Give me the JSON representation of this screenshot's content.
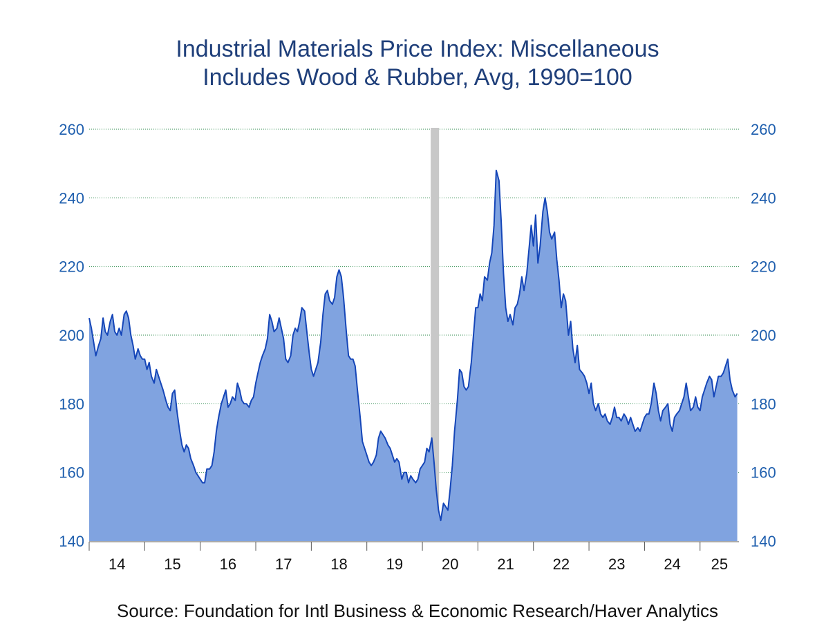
{
  "chart_data": {
    "type": "area",
    "title": "Industrial Materials Price Index: Miscellaneous",
    "subtitle": "Includes Wood & Rubber, Avg, 1990=100",
    "source": "Source:  Foundation for Intl Business & Economic Research/Haver Analytics",
    "xlabel": "",
    "ylabel": "",
    "ylim": [
      140,
      260
    ],
    "xlim": [
      2014.0,
      2025.7
    ],
    "y_ticks": [
      140,
      160,
      180,
      200,
      220,
      240,
      260
    ],
    "y_tick_labels": [
      "140",
      "160",
      "180",
      "200",
      "220",
      "240",
      "260"
    ],
    "x_tick_labels": [
      "14",
      "15",
      "16",
      "17",
      "18",
      "19",
      "20",
      "21",
      "22",
      "23",
      "24",
      "25"
    ],
    "grid": true,
    "recession_band": [
      2020.15,
      2020.3
    ],
    "colors": {
      "fill": "#80a3e0",
      "line": "#1546b8",
      "recession": "#c8c8c8",
      "grid": "#2a8a4a",
      "tick_text": "#1f5fae",
      "title": "#1f3f7a"
    },
    "series": [
      {
        "points": [
          [
            2014.0,
            205
          ],
          [
            2014.04,
            202
          ],
          [
            2014.08,
            198
          ],
          [
            2014.12,
            194
          ],
          [
            2014.17,
            197
          ],
          [
            2014.21,
            199
          ],
          [
            2014.25,
            205
          ],
          [
            2014.29,
            201
          ],
          [
            2014.33,
            200
          ],
          [
            2014.38,
            204
          ],
          [
            2014.42,
            206
          ],
          [
            2014.46,
            201
          ],
          [
            2014.5,
            200
          ],
          [
            2014.54,
            202
          ],
          [
            2014.58,
            200
          ],
          [
            2014.63,
            206
          ],
          [
            2014.67,
            207
          ],
          [
            2014.71,
            205
          ],
          [
            2014.75,
            200
          ],
          [
            2014.79,
            197
          ],
          [
            2014.83,
            193
          ],
          [
            2014.88,
            196
          ],
          [
            2014.92,
            194
          ],
          [
            2014.96,
            193
          ],
          [
            2015.0,
            193
          ],
          [
            2015.04,
            190
          ],
          [
            2015.08,
            192
          ],
          [
            2015.12,
            188
          ],
          [
            2015.17,
            186
          ],
          [
            2015.21,
            190
          ],
          [
            2015.25,
            188
          ],
          [
            2015.29,
            186
          ],
          [
            2015.33,
            184
          ],
          [
            2015.38,
            181
          ],
          [
            2015.42,
            179
          ],
          [
            2015.46,
            178
          ],
          [
            2015.5,
            183
          ],
          [
            2015.54,
            184
          ],
          [
            2015.58,
            178
          ],
          [
            2015.63,
            172
          ],
          [
            2015.67,
            168
          ],
          [
            2015.71,
            166
          ],
          [
            2015.75,
            168
          ],
          [
            2015.79,
            167
          ],
          [
            2015.83,
            164
          ],
          [
            2015.88,
            162
          ],
          [
            2015.92,
            160
          ],
          [
            2015.96,
            159
          ],
          [
            2016.0,
            158
          ],
          [
            2016.04,
            157
          ],
          [
            2016.08,
            157
          ],
          [
            2016.12,
            161
          ],
          [
            2016.17,
            161
          ],
          [
            2016.21,
            162
          ],
          [
            2016.25,
            166
          ],
          [
            2016.29,
            172
          ],
          [
            2016.33,
            176
          ],
          [
            2016.38,
            180
          ],
          [
            2016.42,
            182
          ],
          [
            2016.46,
            184
          ],
          [
            2016.5,
            179
          ],
          [
            2016.54,
            180
          ],
          [
            2016.58,
            182
          ],
          [
            2016.63,
            181
          ],
          [
            2016.67,
            186
          ],
          [
            2016.71,
            184
          ],
          [
            2016.75,
            181
          ],
          [
            2016.79,
            180
          ],
          [
            2016.83,
            180
          ],
          [
            2016.88,
            179
          ],
          [
            2016.92,
            181
          ],
          [
            2016.96,
            182
          ],
          [
            2017.0,
            186
          ],
          [
            2017.04,
            189
          ],
          [
            2017.08,
            192
          ],
          [
            2017.12,
            194
          ],
          [
            2017.17,
            196
          ],
          [
            2017.21,
            199
          ],
          [
            2017.25,
            206
          ],
          [
            2017.29,
            204
          ],
          [
            2017.33,
            201
          ],
          [
            2017.38,
            202
          ],
          [
            2017.42,
            205
          ],
          [
            2017.46,
            202
          ],
          [
            2017.5,
            199
          ],
          [
            2017.54,
            193
          ],
          [
            2017.58,
            192
          ],
          [
            2017.63,
            194
          ],
          [
            2017.67,
            200
          ],
          [
            2017.71,
            202
          ],
          [
            2017.75,
            201
          ],
          [
            2017.79,
            204
          ],
          [
            2017.83,
            208
          ],
          [
            2017.88,
            207
          ],
          [
            2017.92,
            201
          ],
          [
            2017.96,
            195
          ],
          [
            2018.0,
            190
          ],
          [
            2018.04,
            188
          ],
          [
            2018.08,
            190
          ],
          [
            2018.12,
            192
          ],
          [
            2018.17,
            198
          ],
          [
            2018.21,
            206
          ],
          [
            2018.25,
            212
          ],
          [
            2018.29,
            213
          ],
          [
            2018.33,
            210
          ],
          [
            2018.38,
            209
          ],
          [
            2018.42,
            211
          ],
          [
            2018.46,
            217
          ],
          [
            2018.5,
            219
          ],
          [
            2018.54,
            217
          ],
          [
            2018.58,
            211
          ],
          [
            2018.63,
            201
          ],
          [
            2018.67,
            194
          ],
          [
            2018.71,
            193
          ],
          [
            2018.75,
            193
          ],
          [
            2018.79,
            191
          ],
          [
            2018.83,
            184
          ],
          [
            2018.88,
            176
          ],
          [
            2018.92,
            169
          ],
          [
            2018.96,
            167
          ],
          [
            2019.0,
            165
          ],
          [
            2019.04,
            163
          ],
          [
            2019.08,
            162
          ],
          [
            2019.12,
            163
          ],
          [
            2019.17,
            165
          ],
          [
            2019.21,
            170
          ],
          [
            2019.25,
            172
          ],
          [
            2019.29,
            171
          ],
          [
            2019.33,
            170
          ],
          [
            2019.38,
            168
          ],
          [
            2019.42,
            167
          ],
          [
            2019.46,
            165
          ],
          [
            2019.5,
            163
          ],
          [
            2019.54,
            164
          ],
          [
            2019.58,
            163
          ],
          [
            2019.63,
            158
          ],
          [
            2019.67,
            160
          ],
          [
            2019.71,
            160
          ],
          [
            2019.75,
            157
          ],
          [
            2019.79,
            159
          ],
          [
            2019.83,
            158
          ],
          [
            2019.88,
            157
          ],
          [
            2019.92,
            158
          ],
          [
            2019.96,
            161
          ],
          [
            2020.0,
            162
          ],
          [
            2020.04,
            163
          ],
          [
            2020.08,
            167
          ],
          [
            2020.12,
            166
          ],
          [
            2020.17,
            170
          ],
          [
            2020.21,
            163
          ],
          [
            2020.25,
            155
          ],
          [
            2020.29,
            149
          ],
          [
            2020.33,
            146
          ],
          [
            2020.38,
            151
          ],
          [
            2020.42,
            150
          ],
          [
            2020.46,
            149
          ],
          [
            2020.5,
            155
          ],
          [
            2020.54,
            162
          ],
          [
            2020.58,
            172
          ],
          [
            2020.63,
            181
          ],
          [
            2020.67,
            190
          ],
          [
            2020.71,
            189
          ],
          [
            2020.75,
            185
          ],
          [
            2020.79,
            184
          ],
          [
            2020.83,
            185
          ],
          [
            2020.88,
            192
          ],
          [
            2020.92,
            200
          ],
          [
            2020.96,
            208
          ],
          [
            2021.0,
            208
          ],
          [
            2021.04,
            212
          ],
          [
            2021.08,
            210
          ],
          [
            2021.12,
            217
          ],
          [
            2021.17,
            216
          ],
          [
            2021.21,
            221
          ],
          [
            2021.25,
            224
          ],
          [
            2021.29,
            232
          ],
          [
            2021.33,
            248
          ],
          [
            2021.38,
            245
          ],
          [
            2021.42,
            233
          ],
          [
            2021.46,
            218
          ],
          [
            2021.5,
            208
          ],
          [
            2021.54,
            204
          ],
          [
            2021.58,
            206
          ],
          [
            2021.63,
            203
          ],
          [
            2021.67,
            208
          ],
          [
            2021.71,
            209
          ],
          [
            2021.75,
            212
          ],
          [
            2021.79,
            217
          ],
          [
            2021.83,
            213
          ],
          [
            2021.88,
            218
          ],
          [
            2021.92,
            225
          ],
          [
            2021.96,
            232
          ],
          [
            2022.0,
            226
          ],
          [
            2022.04,
            235
          ],
          [
            2022.08,
            221
          ],
          [
            2022.12,
            226
          ],
          [
            2022.17,
            236
          ],
          [
            2022.21,
            240
          ],
          [
            2022.25,
            236
          ],
          [
            2022.29,
            230
          ],
          [
            2022.33,
            228
          ],
          [
            2022.38,
            230
          ],
          [
            2022.42,
            222
          ],
          [
            2022.46,
            216
          ],
          [
            2022.5,
            208
          ],
          [
            2022.54,
            212
          ],
          [
            2022.58,
            210
          ],
          [
            2022.63,
            200
          ],
          [
            2022.67,
            204
          ],
          [
            2022.71,
            196
          ],
          [
            2022.75,
            192
          ],
          [
            2022.79,
            197
          ],
          [
            2022.83,
            190
          ],
          [
            2022.88,
            189
          ],
          [
            2022.92,
            188
          ],
          [
            2022.96,
            186
          ],
          [
            2023.0,
            183
          ],
          [
            2023.04,
            186
          ],
          [
            2023.08,
            180
          ],
          [
            2023.12,
            178
          ],
          [
            2023.17,
            180
          ],
          [
            2023.21,
            177
          ],
          [
            2023.25,
            176
          ],
          [
            2023.29,
            177
          ],
          [
            2023.33,
            175
          ],
          [
            2023.38,
            174
          ],
          [
            2023.42,
            176
          ],
          [
            2023.46,
            179
          ],
          [
            2023.5,
            176
          ],
          [
            2023.54,
            176
          ],
          [
            2023.58,
            175
          ],
          [
            2023.63,
            177
          ],
          [
            2023.67,
            176
          ],
          [
            2023.71,
            174
          ],
          [
            2023.75,
            176
          ],
          [
            2023.79,
            174
          ],
          [
            2023.83,
            172
          ],
          [
            2023.88,
            173
          ],
          [
            2023.92,
            172
          ],
          [
            2023.96,
            174
          ],
          [
            2024.0,
            176
          ],
          [
            2024.04,
            177
          ],
          [
            2024.08,
            177
          ],
          [
            2024.12,
            180
          ],
          [
            2024.17,
            186
          ],
          [
            2024.21,
            183
          ],
          [
            2024.25,
            178
          ],
          [
            2024.29,
            175
          ],
          [
            2024.33,
            178
          ],
          [
            2024.38,
            179
          ],
          [
            2024.42,
            180
          ],
          [
            2024.46,
            174
          ],
          [
            2024.5,
            172
          ],
          [
            2024.54,
            176
          ],
          [
            2024.58,
            177
          ],
          [
            2024.63,
            178
          ],
          [
            2024.67,
            180
          ],
          [
            2024.71,
            182
          ],
          [
            2024.75,
            186
          ],
          [
            2024.79,
            182
          ],
          [
            2024.83,
            178
          ],
          [
            2024.88,
            179
          ],
          [
            2024.92,
            182
          ],
          [
            2024.96,
            179
          ],
          [
            2025.0,
            178
          ],
          [
            2025.04,
            182
          ],
          [
            2025.08,
            184
          ],
          [
            2025.12,
            186
          ],
          [
            2025.17,
            188
          ],
          [
            2025.21,
            187
          ],
          [
            2025.25,
            182
          ],
          [
            2025.29,
            185
          ],
          [
            2025.33,
            188
          ],
          [
            2025.38,
            188
          ],
          [
            2025.42,
            189
          ],
          [
            2025.46,
            191
          ],
          [
            2025.5,
            193
          ],
          [
            2025.54,
            187
          ],
          [
            2025.58,
            184
          ],
          [
            2025.63,
            182
          ],
          [
            2025.67,
            183
          ]
        ]
      }
    ]
  }
}
